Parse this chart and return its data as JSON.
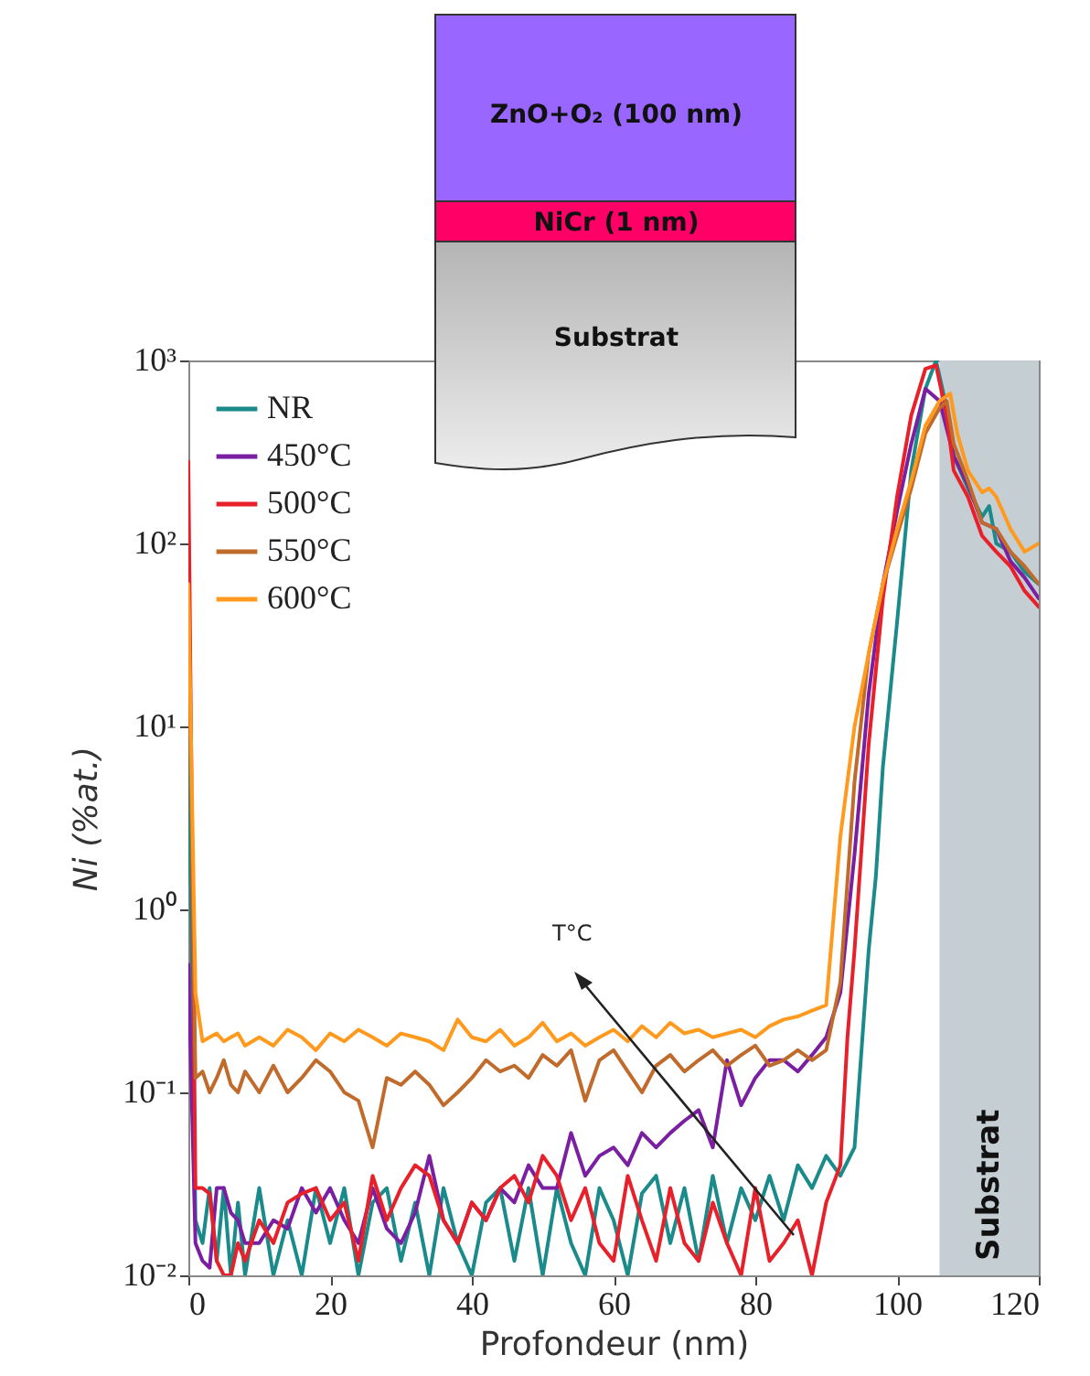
{
  "chart_data": {
    "type": "line",
    "xlabel": "Profondeur (nm)",
    "ylabel": "Ni (%at.)",
    "log": "y",
    "xlim": [
      0,
      120
    ],
    "xticks": [
      0,
      20,
      40,
      60,
      80,
      100,
      120
    ],
    "ylim": [
      0.01,
      1000
    ],
    "yticks": [
      {
        "value": 0.01,
        "label": "10⁻²"
      },
      {
        "value": 0.1,
        "label": "10⁻¹"
      },
      {
        "value": 1,
        "label": "10⁰"
      },
      {
        "value": 10,
        "label": "10¹"
      },
      {
        "value": 100,
        "label": "10²"
      },
      {
        "value": 1000,
        "label": "10³"
      }
    ],
    "legend": "top left",
    "line_style": "solid",
    "marker": "none",
    "bands": [
      {
        "axis": "x",
        "from": 106,
        "to": 120,
        "label": "Substrat",
        "color": "#c5ced3"
      }
    ],
    "annotations": [
      "ZnO+O₂ (100 nm)",
      "NiCr (1 nm)",
      "Substrat",
      "T°C"
    ],
    "series": [
      {
        "name": "NR",
        "color": "#1a8a8a",
        "x": [
          0,
          1,
          2,
          3,
          4,
          5,
          6,
          7,
          8,
          10,
          12,
          14,
          16,
          18,
          20,
          22,
          24,
          26,
          28,
          30,
          32,
          34,
          36,
          38,
          40,
          42,
          44,
          46,
          48,
          50,
          52,
          54,
          56,
          58,
          60,
          62,
          64,
          66,
          68,
          70,
          72,
          74,
          76,
          78,
          80,
          82,
          84,
          86,
          88,
          90,
          92,
          94,
          96,
          97,
          98,
          100,
          102,
          104,
          105.5,
          107,
          108,
          110,
          112,
          113,
          114,
          116,
          118,
          120
        ],
        "values": [
          10,
          0.02,
          0.015,
          0.03,
          0.012,
          0.03,
          0.01,
          0.025,
          0.01,
          0.03,
          0.01,
          0.02,
          0.01,
          0.03,
          0.015,
          0.03,
          0.01,
          0.025,
          0.03,
          0.012,
          0.025,
          0.01,
          0.03,
          0.015,
          0.01,
          0.025,
          0.03,
          0.012,
          0.03,
          0.01,
          0.03,
          0.015,
          0.01,
          0.03,
          0.02,
          0.01,
          0.028,
          0.035,
          0.015,
          0.03,
          0.012,
          0.035,
          0.015,
          0.03,
          0.02,
          0.035,
          0.02,
          0.04,
          0.03,
          0.045,
          0.035,
          0.05,
          0.6,
          1.5,
          6,
          37,
          250,
          700,
          1000,
          550,
          300,
          200,
          140,
          160,
          100,
          90,
          70,
          60
        ]
      },
      {
        "name": "450°C",
        "color": "#7b1fa2",
        "x": [
          0,
          1,
          2,
          3,
          4,
          5,
          6,
          7,
          8,
          10,
          12,
          14,
          16,
          18,
          20,
          22,
          24,
          26,
          28,
          30,
          32,
          34,
          36,
          38,
          40,
          42,
          44,
          46,
          48,
          50,
          52,
          54,
          56,
          58,
          60,
          62,
          64,
          66,
          68,
          70,
          72,
          74,
          76,
          78,
          80,
          82,
          84,
          86,
          88,
          90,
          92,
          94,
          96,
          98,
          100,
          102,
          104,
          106,
          108,
          110,
          112,
          114,
          116,
          118,
          120
        ],
        "values": [
          0.5,
          0.015,
          0.012,
          0.011,
          0.03,
          0.03,
          0.022,
          0.02,
          0.015,
          0.015,
          0.02,
          0.018,
          0.03,
          0.022,
          0.03,
          0.02,
          0.015,
          0.03,
          0.018,
          0.015,
          0.022,
          0.045,
          0.02,
          0.015,
          0.025,
          0.02,
          0.03,
          0.025,
          0.04,
          0.03,
          0.03,
          0.06,
          0.035,
          0.045,
          0.05,
          0.04,
          0.06,
          0.05,
          0.06,
          0.07,
          0.08,
          0.05,
          0.15,
          0.085,
          0.12,
          0.15,
          0.15,
          0.13,
          0.16,
          0.2,
          0.35,
          2,
          15,
          60,
          150,
          350,
          700,
          600,
          300,
          210,
          130,
          120,
          80,
          65,
          50
        ]
      },
      {
        "name": "500°C",
        "color": "#e8202a",
        "x": [
          0,
          1,
          2,
          3,
          4,
          5,
          6,
          7,
          8,
          10,
          12,
          14,
          16,
          18,
          20,
          22,
          24,
          26,
          28,
          30,
          32,
          34,
          36,
          38,
          40,
          42,
          44,
          46,
          48,
          50,
          52,
          54,
          56,
          58,
          60,
          62,
          64,
          66,
          68,
          70,
          72,
          74,
          76,
          78,
          80,
          82,
          84,
          86,
          88,
          90,
          92,
          93,
          94,
          96,
          98,
          100,
          102,
          104,
          105.5,
          107,
          108,
          110,
          112,
          114,
          116,
          118,
          120
        ],
        "values": [
          280,
          0.03,
          0.03,
          0.028,
          0.012,
          0.01,
          0.01,
          0.015,
          0.012,
          0.02,
          0.015,
          0.025,
          0.028,
          0.03,
          0.02,
          0.025,
          0.012,
          0.035,
          0.02,
          0.03,
          0.04,
          0.035,
          0.02,
          0.015,
          0.025,
          0.02,
          0.03,
          0.035,
          0.025,
          0.045,
          0.035,
          0.02,
          0.03,
          0.015,
          0.012,
          0.035,
          0.02,
          0.012,
          0.03,
          0.015,
          0.012,
          0.025,
          0.015,
          0.01,
          0.03,
          0.012,
          0.015,
          0.02,
          0.01,
          0.025,
          0.04,
          0.2,
          0.6,
          8,
          50,
          180,
          500,
          900,
          940,
          500,
          250,
          180,
          110,
          90,
          75,
          55,
          45
        ]
      },
      {
        "name": "550°C",
        "color": "#c06a2b",
        "x": [
          0,
          1,
          2,
          3,
          4,
          5,
          6,
          7,
          8,
          10,
          12,
          14,
          16,
          18,
          20,
          22,
          24,
          26,
          28,
          30,
          32,
          34,
          36,
          38,
          40,
          42,
          44,
          46,
          48,
          50,
          52,
          54,
          56,
          58,
          60,
          62,
          64,
          66,
          68,
          70,
          72,
          74,
          76,
          78,
          80,
          82,
          84,
          86,
          88,
          90,
          92,
          94,
          96,
          98,
          100,
          102,
          104,
          106,
          107,
          108,
          110,
          112,
          114,
          116,
          118,
          120
        ],
        "values": [
          50,
          0.12,
          0.13,
          0.1,
          0.12,
          0.15,
          0.11,
          0.1,
          0.13,
          0.1,
          0.14,
          0.1,
          0.12,
          0.15,
          0.13,
          0.1,
          0.09,
          0.05,
          0.12,
          0.11,
          0.13,
          0.11,
          0.085,
          0.1,
          0.12,
          0.15,
          0.13,
          0.14,
          0.12,
          0.16,
          0.14,
          0.17,
          0.09,
          0.15,
          0.17,
          0.13,
          0.1,
          0.14,
          0.16,
          0.13,
          0.15,
          0.17,
          0.14,
          0.16,
          0.18,
          0.14,
          0.15,
          0.17,
          0.15,
          0.17,
          0.4,
          5,
          25,
          60,
          110,
          200,
          400,
          550,
          600,
          350,
          220,
          130,
          120,
          90,
          75,
          60
        ]
      },
      {
        "name": "600°C",
        "color": "#ff9a1f",
        "x": [
          0,
          1,
          2,
          3,
          4,
          5,
          6,
          7,
          8,
          10,
          12,
          14,
          16,
          18,
          20,
          22,
          24,
          26,
          28,
          30,
          32,
          34,
          36,
          38,
          40,
          42,
          44,
          46,
          48,
          50,
          52,
          54,
          56,
          58,
          60,
          62,
          64,
          66,
          68,
          70,
          72,
          74,
          76,
          78,
          80,
          82,
          84,
          86,
          88,
          90,
          92,
          94,
          96,
          98,
          100,
          102,
          104,
          106,
          107.5,
          108.5,
          110,
          112,
          113,
          114,
          116,
          118,
          120
        ],
        "values": [
          60,
          0.35,
          0.19,
          0.2,
          0.21,
          0.19,
          0.2,
          0.21,
          0.18,
          0.2,
          0.18,
          0.22,
          0.2,
          0.17,
          0.21,
          0.19,
          0.22,
          0.2,
          0.18,
          0.21,
          0.2,
          0.19,
          0.17,
          0.25,
          0.2,
          0.19,
          0.22,
          0.18,
          0.2,
          0.24,
          0.19,
          0.21,
          0.18,
          0.2,
          0.22,
          0.19,
          0.23,
          0.2,
          0.24,
          0.21,
          0.22,
          0.2,
          0.21,
          0.22,
          0.2,
          0.23,
          0.25,
          0.26,
          0.28,
          0.3,
          2.5,
          10,
          25,
          60,
          120,
          220,
          440,
          600,
          660,
          400,
          250,
          190,
          200,
          180,
          120,
          90,
          100
        ]
      }
    ]
  }
}
